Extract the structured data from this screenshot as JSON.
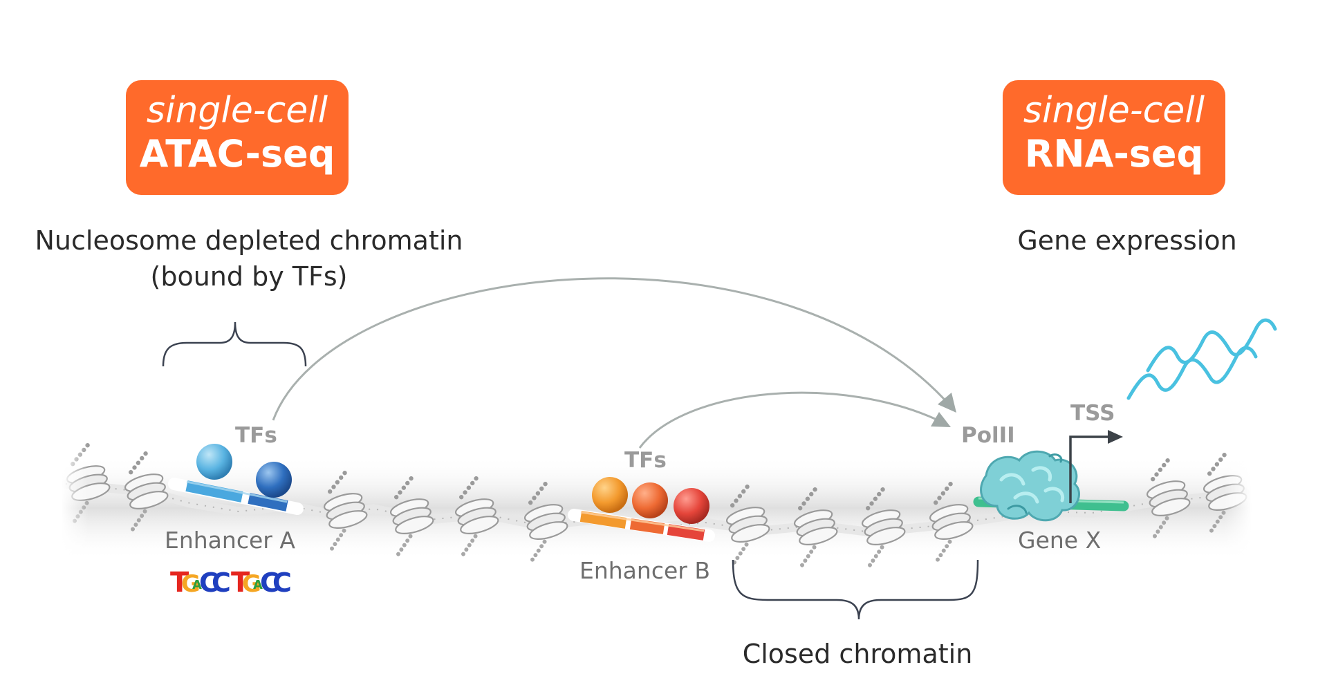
{
  "badges": {
    "atac": {
      "line1": "single-cell",
      "line2": "ATAC-seq"
    },
    "rna": {
      "line1": "single-cell",
      "line2": "RNA-seq"
    }
  },
  "labels": {
    "nucleosome_depleted": "Nucleosome depleted chromatin",
    "bound_by_tfs": "(bound by TFs)",
    "gene_expression": "Gene expression",
    "closed_chromatin": "Closed chromatin"
  },
  "elements": {
    "tfs_a": "TFs",
    "tfs_b": "TFs",
    "polii": "PolII",
    "tss": "TSS",
    "enhancer_a": "Enhancer A",
    "enhancer_b": "Enhancer B",
    "gene_x": "Gene X"
  },
  "motif": {
    "letters": [
      "T",
      "G",
      "A",
      "C",
      "C"
    ],
    "colors": {
      "T": "#e5261f",
      "G": "#f5a623",
      "A": "#2e9e3e",
      "C": "#1f3fbf"
    }
  },
  "colors": {
    "badge": "#ff6a2b",
    "enhancer_a": "#4aa8df",
    "enhancer_b": "#f07a2a",
    "tf_a_light": "#5ab4e2",
    "tf_a_dark": "#2f6fbf",
    "tf_b_orange": "#f39a2e",
    "tf_b_red": "#e5453a",
    "gene": "#3fbf8f",
    "polii": "#6cc8cf",
    "rna": "#49c1e0",
    "arrow": "#9fa8a6"
  }
}
